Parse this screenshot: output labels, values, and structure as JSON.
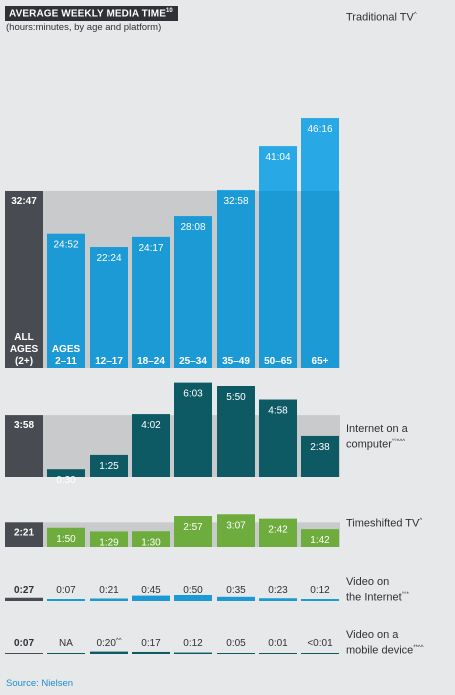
{
  "title": "AVERAGE WEEKLY MEDIA TIME",
  "title_sup": "10",
  "subtitle": "(hours:minutes, by age and platform)",
  "source": "Source: Nielsen",
  "colors": {
    "background": "#e7e8e9",
    "dark_gray": "#494b52",
    "band_gray": "#c9cacc",
    "blue": "#1c9ad6",
    "blue_light": "#2aaae8",
    "teal": "#0e5a64",
    "green": "#6eac3e",
    "text_dark": "#2f3136"
  },
  "chart_data": {
    "type": "bar",
    "categories": [
      "2–11",
      "12–17",
      "18–24",
      "25–34",
      "35–49",
      "50–65",
      "65+"
    ],
    "age_labels": {
      "all_line1": "ALL",
      "all_line2": "AGES",
      "all_line3": "(2+)",
      "first_prefix": "AGES",
      "first": "2–11",
      "rest": [
        "12–17",
        "18–24",
        "25–34",
        "35–49",
        "50–65",
        "65+"
      ]
    },
    "panels": [
      {
        "name": "Traditional TV",
        "name_sup": "^",
        "all_ages": "32:47",
        "all_ages_minutes": 1967,
        "labels": [
          "24:52",
          "22:24",
          "24:17",
          "28:08",
          "32:58",
          "41:04",
          "46:16"
        ],
        "values_minutes": [
          1492,
          1344,
          1457,
          1688,
          1978,
          2464,
          2776
        ]
      },
      {
        "name_line1": "Internet on a",
        "name_line2": "computer",
        "name_sup": "°°^^^",
        "all_ages": "3:58",
        "all_ages_minutes": 238,
        "labels": [
          "0:30",
          "1:25",
          "4:02",
          "6:03",
          "5:50",
          "4:58",
          "2:38"
        ],
        "values_minutes": [
          30,
          85,
          242,
          363,
          350,
          298,
          158
        ]
      },
      {
        "name": "Timeshifted TV",
        "name_sup": "^",
        "all_ages": "2:21",
        "all_ages_minutes": 141,
        "labels": [
          "1:50",
          "1:29",
          "1:30",
          "2:57",
          "3:07",
          "2:42",
          "1:42"
        ],
        "values_minutes": [
          110,
          89,
          90,
          177,
          187,
          162,
          102
        ]
      },
      {
        "name_line1": "Video on",
        "name_line2": "the Internet",
        "name_sup": "°°*",
        "all_ages": "0:27",
        "all_ages_minutes": 27,
        "labels": [
          "0:07",
          "0:21",
          "0:45",
          "0:50",
          "0:35",
          "0:23",
          "0:12"
        ],
        "values_minutes": [
          7,
          21,
          45,
          50,
          35,
          23,
          12
        ]
      },
      {
        "name_line1": "Video on a",
        "name_line2": "mobile device",
        "name_sup": "**^^",
        "all_ages": "0:07",
        "all_ages_minutes": 7,
        "labels": [
          "NA",
          "0:20",
          "0:17",
          "0:12",
          "0:05",
          "0:01",
          "<0:01"
        ],
        "label_sups": [
          "",
          "^^",
          "",
          "",
          "",
          "",
          ""
        ],
        "values_minutes": [
          0,
          20,
          17,
          12,
          5,
          1,
          0.5
        ]
      }
    ]
  }
}
